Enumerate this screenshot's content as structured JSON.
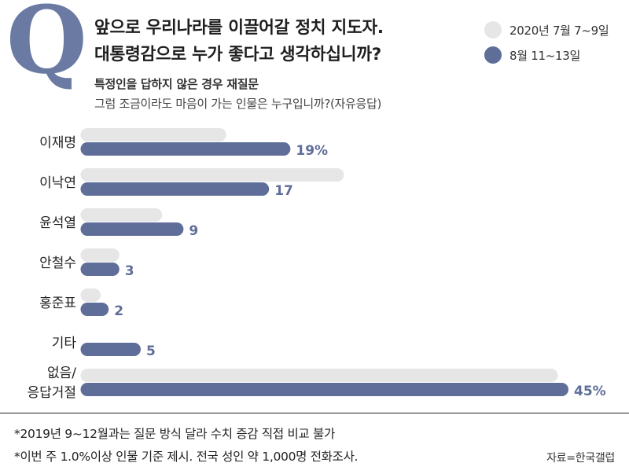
{
  "header": {
    "q_letter": "Q",
    "title_line1": "앞으로 우리나라를 이끌어갈 정치 지도자.",
    "title_line2": "대통령감으로 누가 좋다고 생각하십니까?",
    "subtitle1": "특정인을 답하지 않은 경우 재질문",
    "subtitle2": "그럼 조금이라도 마음이 가는 인물은 누구입니까?(자유응답)"
  },
  "colors": {
    "accent": "#6a7aa3",
    "series_prev": "#e6e6e6",
    "series_curr": "#5f6e99",
    "value_text": "#5f6e99"
  },
  "legend": [
    {
      "label": "2020년 7월 7~9일",
      "color": "#e6e6e6"
    },
    {
      "label": "8월 11~13일",
      "color": "#5f6e99"
    }
  ],
  "chart_data": {
    "type": "bar",
    "orientation": "horizontal",
    "categories": [
      "이재명",
      "이낙연",
      "윤석열",
      "안철수",
      "홍준표",
      "기타",
      "없음/\n응답거절"
    ],
    "series": [
      {
        "name": "2020년 7월 7~9일",
        "values": [
          13,
          24,
          7,
          3,
          1,
          null,
          44
        ]
      },
      {
        "name": "8월 11~13일",
        "values": [
          19,
          17,
          9,
          3,
          2,
          5,
          45
        ]
      }
    ],
    "value_labels": [
      "19%",
      "17",
      "9",
      "3",
      "2",
      "5",
      "45%"
    ],
    "xlim": [
      0,
      48
    ],
    "grid": false,
    "legend_position": "top-right"
  },
  "footnotes": [
    "*2019년 9~12월과는 질문 방식 달라 수치 증감 직접 비교 불가",
    "*이번 주 1.0%이상 인물 기준 제시. 전국 성인 약 1,000명 전화조사."
  ],
  "source": "자료=한국갤럽"
}
